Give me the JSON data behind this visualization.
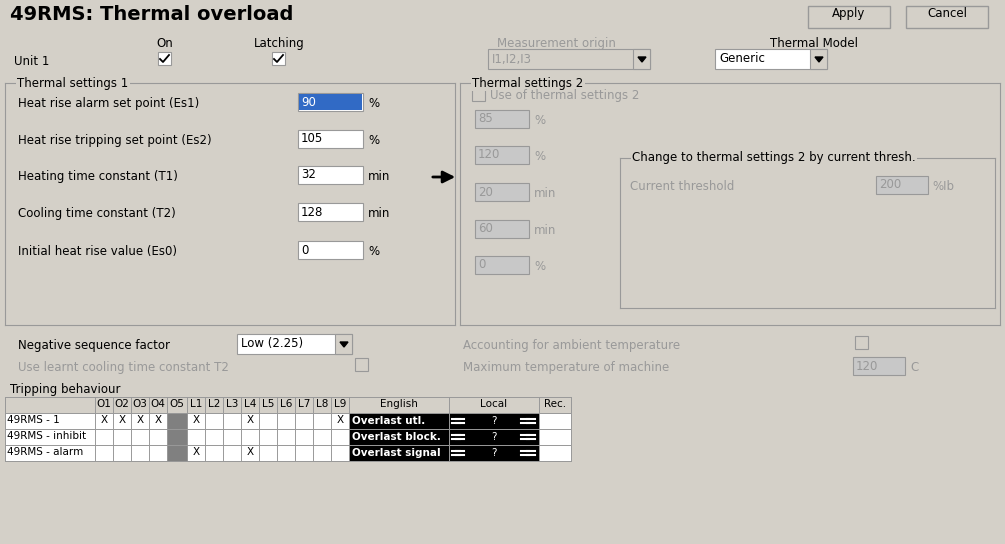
{
  "title": "49RMS: Thermal overload",
  "bg_color": "#d4d0c8",
  "apply_btn": "Apply",
  "cancel_btn": "Cancel",
  "on_label": "On",
  "latching_label": "Latching",
  "unit1_label": "Unit 1",
  "meas_origin_label": "Measurement origin",
  "meas_origin_val": "I1,I2,I3",
  "thermal_model_label": "Thermal Model",
  "thermal_model_val": "Generic",
  "ts1_label": "Thermal settings 1",
  "ts2_label": "Thermal settings 2",
  "use_ts2_label": "Use of thermal settings 2",
  "ts1_fields": [
    {
      "label": "Heat rise alarm set point (Es1)",
      "value": "90",
      "unit": "%",
      "highlighted": true
    },
    {
      "label": "Heat rise tripping set point (Es2)",
      "value": "105",
      "unit": "%",
      "highlighted": false
    },
    {
      "label": "Heating time constant (T1)",
      "value": "32",
      "unit": "min",
      "highlighted": false
    },
    {
      "label": "Cooling time constant (T2)",
      "value": "128",
      "unit": "min",
      "highlighted": false
    },
    {
      "label": "Initial heat rise value (Es0)",
      "value": "0",
      "unit": "%",
      "highlighted": false
    }
  ],
  "ts2_fields": [
    {
      "value": "85",
      "unit": "%"
    },
    {
      "value": "120",
      "unit": "%"
    },
    {
      "value": "20",
      "unit": "min"
    },
    {
      "value": "60",
      "unit": "min"
    },
    {
      "value": "0",
      "unit": "%"
    }
  ],
  "current_thresh_label": "Current threshold",
  "current_thresh_value": "200",
  "current_thresh_unit": "%Ib",
  "change_ts2_label": "Change to thermal settings 2 by current thresh.",
  "neg_seq_label": "Negative sequence factor",
  "neg_seq_val": "Low (2.25)",
  "ambient_label": "Accounting for ambient temperature",
  "learn_label": "Use learnt cooling time constant T2",
  "max_temp_label": "Maximum temperature of machine",
  "max_temp_val": "120",
  "max_temp_unit": "C",
  "tripping_label": "Tripping behaviour",
  "table_col_names": [
    "O1",
    "O2",
    "O3",
    "O4",
    "O5",
    "L1",
    "L2",
    "L3",
    "L4",
    "L5",
    "L6",
    "L7",
    "L8",
    "L9"
  ],
  "table_rows": [
    {
      "name": "49RMS - 1",
      "O1": "X",
      "O2": "X",
      "O3": "X",
      "O4": "X",
      "O5": "g",
      "L1": "X",
      "L2": " ",
      "L3": " ",
      "L4": "X",
      "L5": " ",
      "L6": " ",
      "L7": " ",
      "L8": " ",
      "L9": "X",
      "english": "Overlast utl.",
      "english_bg": "black",
      "english_fg": "white"
    },
    {
      "name": "49RMS - inhibit",
      "O1": " ",
      "O2": " ",
      "O3": " ",
      "O4": " ",
      "O5": "g",
      "L1": " ",
      "L2": " ",
      "L3": " ",
      "L4": " ",
      "L5": " ",
      "L6": " ",
      "L7": " ",
      "L8": " ",
      "L9": " ",
      "english": "Overlast block.",
      "english_bg": "black",
      "english_fg": "white"
    },
    {
      "name": "49RMS - alarm",
      "O1": " ",
      "O2": " ",
      "O3": " ",
      "O4": " ",
      "O5": "g",
      "L1": "X",
      "L2": " ",
      "L3": " ",
      "L4": "X",
      "L5": " ",
      "L6": " ",
      "L7": " ",
      "L8": " ",
      "L9": " ",
      "english": "Overlast signal",
      "english_bg": "black",
      "english_fg": "white"
    }
  ],
  "local_pattern": "-- ? --",
  "fig_width": 10.05,
  "fig_height": 5.44,
  "dpi": 100
}
